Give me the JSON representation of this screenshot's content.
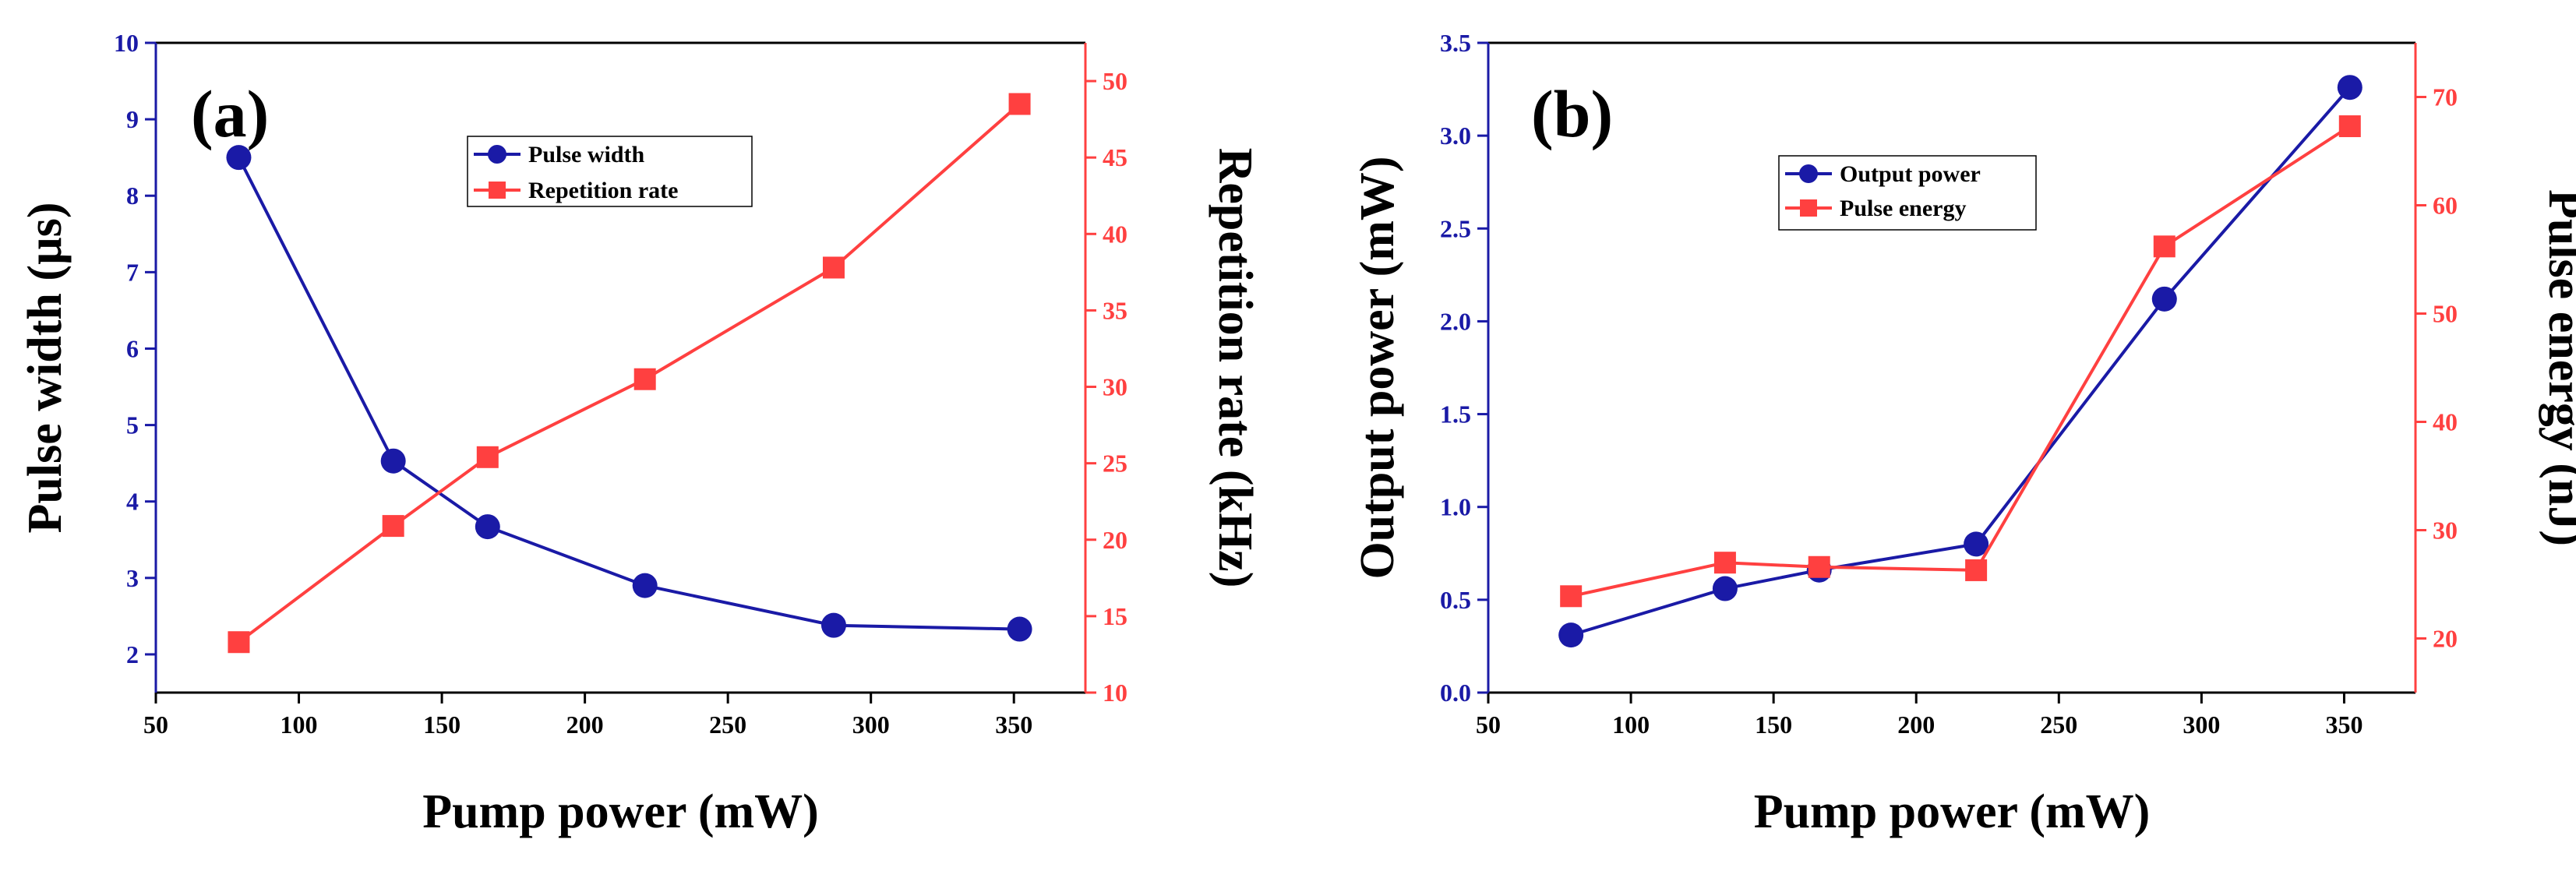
{
  "chart_data": [
    {
      "type": "line",
      "panel_label": "(a)",
      "xlabel": "Pump power (mW)",
      "xlim": [
        50,
        375
      ],
      "xticks": [
        50,
        100,
        150,
        200,
        250,
        300,
        350
      ],
      "x": [
        79,
        133,
        166,
        221,
        287,
        352
      ],
      "y_left": {
        "label": "Pulse width (µs)",
        "lim": [
          1.5,
          10
        ],
        "ticks": [
          2,
          3,
          4,
          5,
          6,
          7,
          8,
          9,
          10
        ],
        "color": "#1a1aa6"
      },
      "y_right": {
        "label": "Repetition rate (kHz)",
        "lim": [
          10,
          52.5
        ],
        "ticks": [
          10,
          15,
          20,
          25,
          30,
          35,
          40,
          45,
          50
        ],
        "color": "#ff4040"
      },
      "series": [
        {
          "name": "Pulse width",
          "axis": "left",
          "marker": "circle",
          "color": "#1a1aa6",
          "values": [
            8.5,
            4.53,
            3.67,
            2.9,
            2.38,
            2.33
          ]
        },
        {
          "name": "Repetition rate",
          "axis": "right",
          "marker": "square",
          "color": "#ff4040",
          "values": [
            13.3,
            20.9,
            25.4,
            30.5,
            37.8,
            48.5
          ]
        }
      ],
      "legend": "top-center"
    },
    {
      "type": "line",
      "panel_label": "(b)",
      "xlabel": "Pump power (mW)",
      "xlim": [
        50,
        375
      ],
      "xticks": [
        50,
        100,
        150,
        200,
        250,
        300,
        350
      ],
      "x": [
        79,
        133,
        166,
        221,
        287,
        352
      ],
      "y_left": {
        "label": "Output power (mW)",
        "lim": [
          0,
          3.5
        ],
        "ticks": [
          "0.0",
          "0.5",
          "1.0",
          "1.5",
          "2.0",
          "2.5",
          "3.0",
          "3.5"
        ],
        "color": "#1a1aa6"
      },
      "y_right": {
        "label": "Pulse energy (nJ)",
        "lim": [
          15,
          75
        ],
        "ticks": [
          20,
          30,
          40,
          50,
          60,
          70
        ],
        "color": "#ff4040"
      },
      "series": [
        {
          "name": "Output power",
          "axis": "left",
          "marker": "circle",
          "color": "#1a1aa6",
          "values": [
            0.31,
            0.56,
            0.66,
            0.8,
            2.12,
            3.26
          ]
        },
        {
          "name": "Pulse energy",
          "axis": "right",
          "marker": "square",
          "color": "#ff4040",
          "values": [
            23.9,
            27.0,
            26.6,
            26.3,
            56.2,
            67.3
          ]
        }
      ],
      "legend": "top-center"
    }
  ]
}
